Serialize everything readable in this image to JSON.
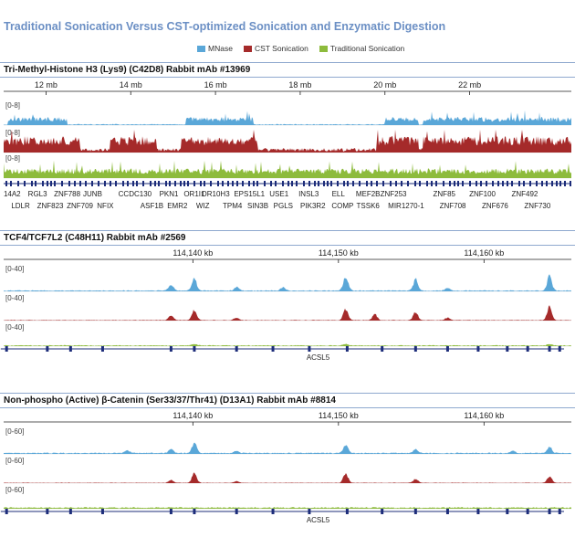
{
  "figure_title": "Traditional Sonication Versus CST-optimized Sonication and Enzymatic Digestion",
  "legend": [
    {
      "name": "MNase",
      "color": "#5aa7d8"
    },
    {
      "name": "CST Sonication",
      "color": "#a52a2a"
    },
    {
      "name": "Traditional Sonication",
      "color": "#8dbb3c"
    }
  ],
  "chart_data": [
    {
      "type": "area",
      "title": "Tri-Methyl-Histone H3 (Lys9) (C42D8) Rabbit mAb #13969",
      "x_ticks": [
        "12 mb",
        "14 mb",
        "16 mb",
        "18 mb",
        "20 mb",
        "22 mb"
      ],
      "x_tick_values": [
        12,
        14,
        16,
        18,
        20,
        22
      ],
      "xlim": [
        11,
        24.4
      ],
      "ylim": [
        0,
        8
      ],
      "tracks": [
        {
          "name": "MNase",
          "range_label": "[0-8]",
          "color": "#5aa7d8",
          "enriched_regions_mb": [
            [
              11.1,
              12.5
            ],
            [
              15.3,
              16.9
            ],
            [
              20.0,
              20.8
            ],
            [
              20.9,
              24.4
            ]
          ],
          "enriched_level": 2.5,
          "background_level": 0.3
        },
        {
          "name": "CST Sonication",
          "range_label": "[0-8]",
          "color": "#a52a2a",
          "enriched_regions_mb": [
            [
              11.0,
              12.8
            ],
            [
              13.5,
              14.6
            ],
            [
              15.2,
              17.0
            ],
            [
              19.8,
              20.8
            ],
            [
              20.9,
              24.4
            ]
          ],
          "enriched_level": 5.0,
          "background_level": 1.2
        },
        {
          "name": "Traditional Sonication",
          "range_label": "[0-8]",
          "color": "#8dbb3c",
          "enriched_regions_mb": [
            [
              11.0,
              24.4
            ]
          ],
          "enriched_level": 3.0,
          "background_level": 2.0
        }
      ],
      "genes_row1": [
        {
          "label": "14A2",
          "mb": 11.2
        },
        {
          "label": "RGL3",
          "mb": 11.8
        },
        {
          "label": "ZNF788",
          "mb": 12.5
        },
        {
          "label": "JUNB",
          "mb": 13.1
        },
        {
          "label": "CCDC130",
          "mb": 14.1
        },
        {
          "label": "PKN1",
          "mb": 14.9
        },
        {
          "label": "OR1I1",
          "mb": 15.5
        },
        {
          "label": "OR10H3",
          "mb": 16.0
        },
        {
          "label": "EPS15L1",
          "mb": 16.8
        },
        {
          "label": "USE1",
          "mb": 17.5
        },
        {
          "label": "INSL3",
          "mb": 18.2
        },
        {
          "label": "ELL",
          "mb": 18.9
        },
        {
          "label": "MEF2B",
          "mb": 19.6
        },
        {
          "label": "ZNF253",
          "mb": 20.2
        },
        {
          "label": "ZNF85",
          "mb": 21.4
        },
        {
          "label": "ZNF100",
          "mb": 22.3
        },
        {
          "label": "ZNF492",
          "mb": 23.3
        }
      ],
      "genes_row2": [
        {
          "label": "LDLR",
          "mb": 11.4
        },
        {
          "label": "ZNF823",
          "mb": 12.1
        },
        {
          "label": "ZNF709",
          "mb": 12.8
        },
        {
          "label": "NFIX",
          "mb": 13.4
        },
        {
          "label": "ASF1B",
          "mb": 14.5
        },
        {
          "label": "EMR2",
          "mb": 15.1
        },
        {
          "label": "WIZ",
          "mb": 15.7
        },
        {
          "label": "TPM4",
          "mb": 16.4
        },
        {
          "label": "SIN3B",
          "mb": 17.0
        },
        {
          "label": "PGLS",
          "mb": 17.6
        },
        {
          "label": "PIK3R2",
          "mb": 18.3
        },
        {
          "label": "COMP",
          "mb": 19.0
        },
        {
          "label": "TSSK6",
          "mb": 19.6
        },
        {
          "label": "MIR1270-1",
          "mb": 20.5
        },
        {
          "label": "ZNF708",
          "mb": 21.6
        },
        {
          "label": "ZNF676",
          "mb": 22.6
        },
        {
          "label": "ZNF730",
          "mb": 23.6
        }
      ]
    },
    {
      "type": "area",
      "title": "TCF4/TCF7L2 (C48H11) Rabbit mAb #2569",
      "x_ticks": [
        "114,140 kb",
        "114,150 kb",
        "114,160 kb"
      ],
      "x_tick_values": [
        114140,
        114150,
        114160
      ],
      "xlim": [
        114127,
        114166
      ],
      "ylim": [
        0,
        40
      ],
      "tracks": [
        {
          "name": "MNase",
          "range_label": "[0-40]",
          "color": "#5aa7d8",
          "peaks": [
            {
              "kb": 114138.5,
              "height": 9
            },
            {
              "kb": 114140.1,
              "height": 18
            },
            {
              "kb": 114143,
              "height": 6
            },
            {
              "kb": 114146.2,
              "height": 5
            },
            {
              "kb": 114150.5,
              "height": 22
            },
            {
              "kb": 114155.3,
              "height": 17
            },
            {
              "kb": 114157.5,
              "height": 4
            },
            {
              "kb": 114164.5,
              "height": 23
            }
          ],
          "background_level": 1.5
        },
        {
          "name": "CST Sonication",
          "range_label": "[0-40]",
          "color": "#a52a2a",
          "peaks": [
            {
              "kb": 114138.5,
              "height": 7
            },
            {
              "kb": 114140.1,
              "height": 16
            },
            {
              "kb": 114143,
              "height": 4
            },
            {
              "kb": 114150.5,
              "height": 17
            },
            {
              "kb": 114152.5,
              "height": 9
            },
            {
              "kb": 114155.3,
              "height": 13
            },
            {
              "kb": 114157.5,
              "height": 4
            },
            {
              "kb": 114164.5,
              "height": 20
            }
          ],
          "background_level": 0.8
        },
        {
          "name": "Traditional Sonication",
          "range_label": "[0-40]",
          "color": "#8dbb3c",
          "peaks": [
            {
              "kb": 114140.1,
              "height": 3
            },
            {
              "kb": 114150.5,
              "height": 2.5
            },
            {
              "kb": 114164.5,
              "height": 2.5
            }
          ],
          "background_level": 1.5
        }
      ],
      "gene": "ACSL5"
    },
    {
      "type": "area",
      "title": "Non-phospho (Active) β-Catenin (Ser33/37/Thr41) (D13A1) Rabbit mAb #8814",
      "x_ticks": [
        "114,140 kb",
        "114,150 kb",
        "114,160 kb"
      ],
      "x_tick_values": [
        114140,
        114150,
        114160
      ],
      "xlim": [
        114127,
        114166
      ],
      "ylim": [
        0,
        60
      ],
      "tracks": [
        {
          "name": "MNase",
          "range_label": "[0-60]",
          "color": "#5aa7d8",
          "peaks": [
            {
              "kb": 114135.5,
              "height": 6
            },
            {
              "kb": 114138.5,
              "height": 9
            },
            {
              "kb": 114140.1,
              "height": 23
            },
            {
              "kb": 114143,
              "height": 5
            },
            {
              "kb": 114150.5,
              "height": 20
            },
            {
              "kb": 114155.3,
              "height": 10
            },
            {
              "kb": 114162,
              "height": 5
            },
            {
              "kb": 114164.5,
              "height": 14
            }
          ],
          "background_level": 2.5
        },
        {
          "name": "CST Sonication",
          "range_label": "[0-60]",
          "color": "#a52a2a",
          "peaks": [
            {
              "kb": 114138.5,
              "height": 7
            },
            {
              "kb": 114140.1,
              "height": 22
            },
            {
              "kb": 114143,
              "height": 4
            },
            {
              "kb": 114150.5,
              "height": 22
            },
            {
              "kb": 114155.3,
              "height": 9
            },
            {
              "kb": 114164.5,
              "height": 16
            }
          ],
          "background_level": 1.0
        },
        {
          "name": "Traditional Sonication",
          "range_label": "[0-60]",
          "color": "#8dbb3c",
          "peaks": [],
          "background_level": 3.5
        }
      ],
      "gene": "ACSL5"
    }
  ]
}
